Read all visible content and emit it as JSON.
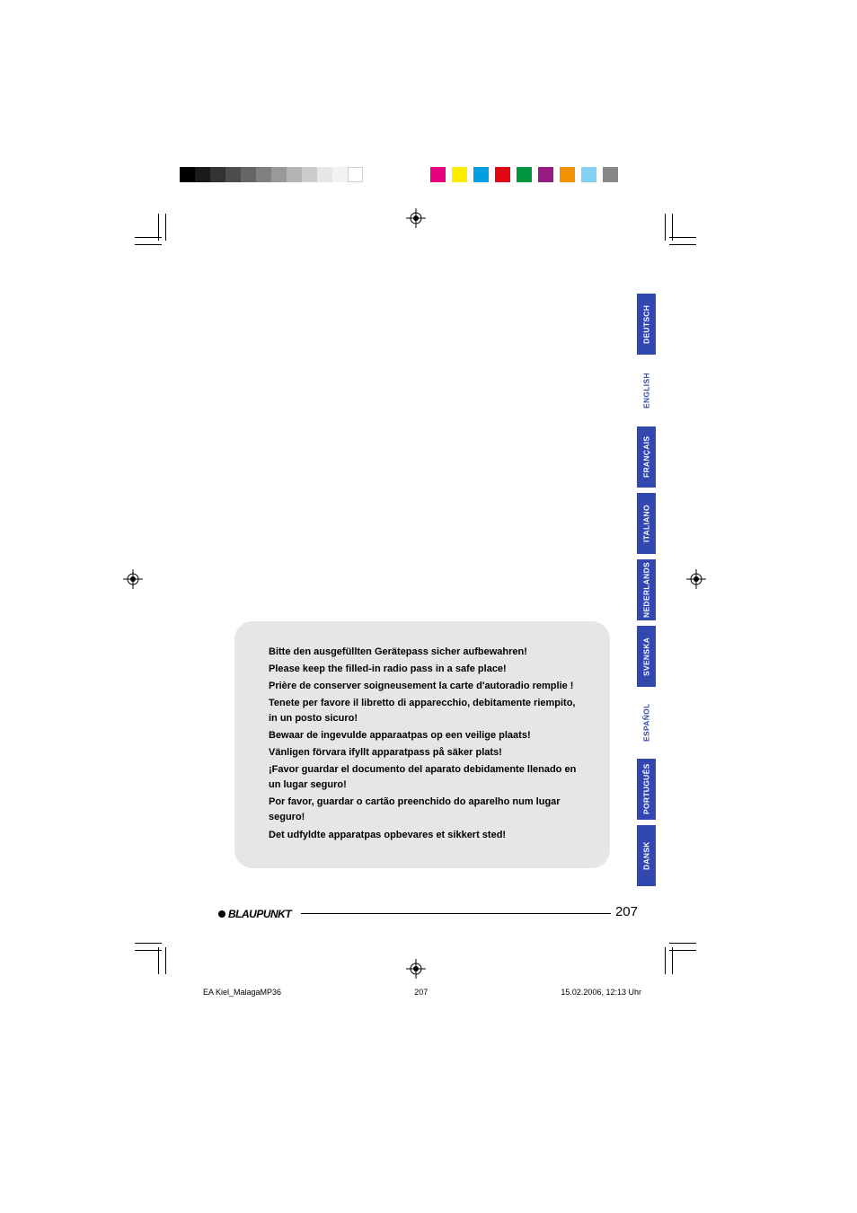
{
  "colorbar": {
    "left_colors": [
      "#000000",
      "#1a1a1a",
      "#333333",
      "#4d4d4d",
      "#666666",
      "#808080",
      "#999999",
      "#b3b3b3",
      "#cccccc",
      "#e6e6e6",
      "#f2f2f2",
      "#ffffff"
    ],
    "right_colors": [
      "#e6007e",
      "#ffed00",
      "#009fe3",
      "#e30613",
      "#009640",
      "#951b81",
      "#f39200",
      "#83d0f5",
      "#878787"
    ]
  },
  "lang_tabs": [
    {
      "label": "DEUTSCH",
      "active": true
    },
    {
      "label": "ENGLISH",
      "active": false
    },
    {
      "label": "FRANÇAIS",
      "active": true
    },
    {
      "label": "ITALIANO",
      "active": true
    },
    {
      "label": "NEDERLANDS",
      "active": true
    },
    {
      "label": "SVENSKA",
      "active": true
    },
    {
      "label": "ESPAÑOL",
      "active": false
    },
    {
      "label": "PORTUGUÊS",
      "active": true
    },
    {
      "label": "DANSK",
      "active": true
    }
  ],
  "text_box": {
    "lines": [
      "Bitte den ausgefüllten Gerätepass sicher aufbewahren!",
      "Please keep the filled-in radio pass in a safe place!",
      "Prière de conserver soigneusement la carte d'autoradio remplie !",
      "Tenete per favore il libretto di apparecchio, debitamente riempito, in un posto sicuro!",
      "Bewaar de ingevulde apparaatpas op een veilige plaats!",
      "Vänligen förvara ifyllt apparatpass på säker plats!",
      "¡Favor guardar el documento del aparato debidamente llenado en un lugar seguro!",
      "Por favor, guardar o cartão preenchido do aparelho num lugar seguro!",
      "Det udfyldte apparatpas opbevares et sikkert sted!"
    ]
  },
  "footer": {
    "brand": "BLAUPUNKT",
    "page": "207"
  },
  "meta": {
    "filename": "EA Kiel_MalagaMP36",
    "pagenum": "207",
    "timestamp": "15.02.2006, 12:13 Uhr"
  }
}
